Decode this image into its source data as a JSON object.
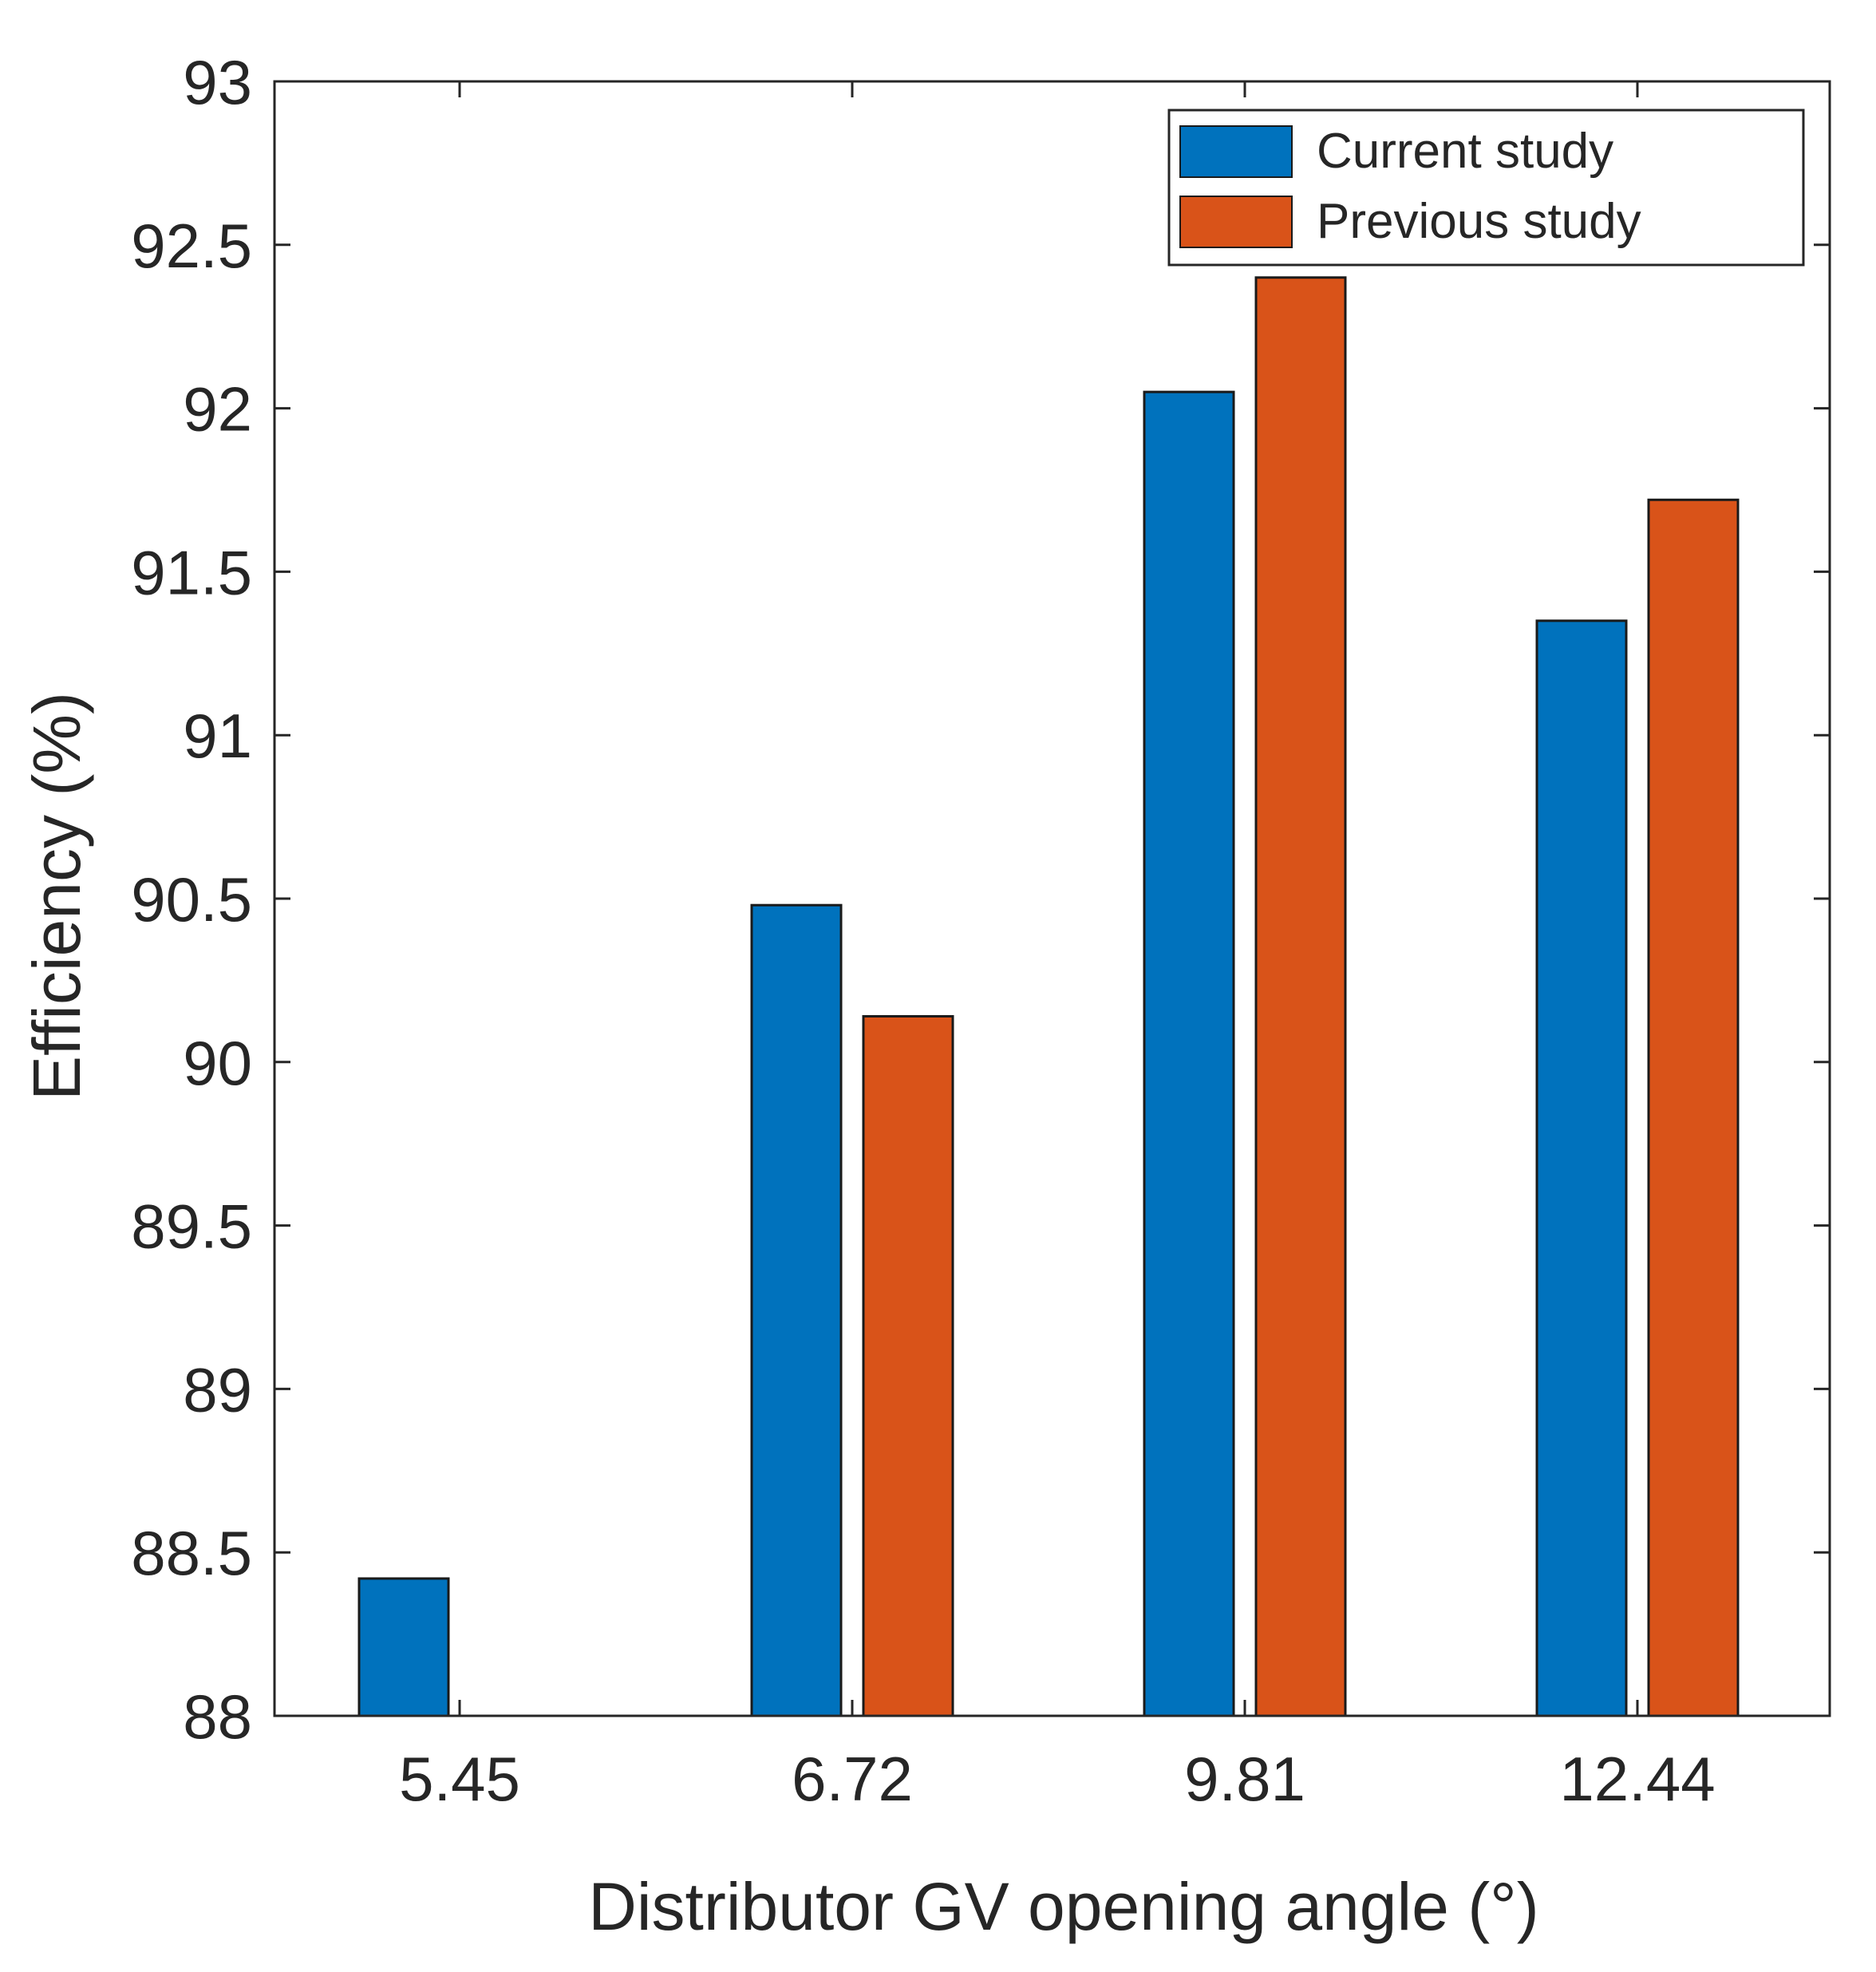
{
  "chart_data": {
    "type": "bar",
    "title": "",
    "xlabel": "Distributor GV opening angle (°)",
    "ylabel": "Efficiency (%)",
    "categories": [
      "5.45",
      "6.72",
      "9.81",
      "12.44"
    ],
    "series": [
      {
        "name": "Current study",
        "color": "#0072BD",
        "values": [
          88.42,
          90.48,
          92.05,
          91.35
        ]
      },
      {
        "name": "Previous study",
        "color": "#D95319",
        "values": [
          null,
          90.14,
          92.4,
          91.72
        ]
      }
    ],
    "ylim": [
      88,
      93
    ],
    "yticks": [
      88,
      88.5,
      89,
      89.5,
      90,
      90.5,
      91,
      91.5,
      92,
      92.5,
      93
    ],
    "yticklabels": [
      "88",
      "88.5",
      "89",
      "89.5",
      "90",
      "90.5",
      "91",
      "91.5",
      "92",
      "92.5",
      "93"
    ],
    "legend": {
      "position": "top-right"
    },
    "grid": false
  }
}
